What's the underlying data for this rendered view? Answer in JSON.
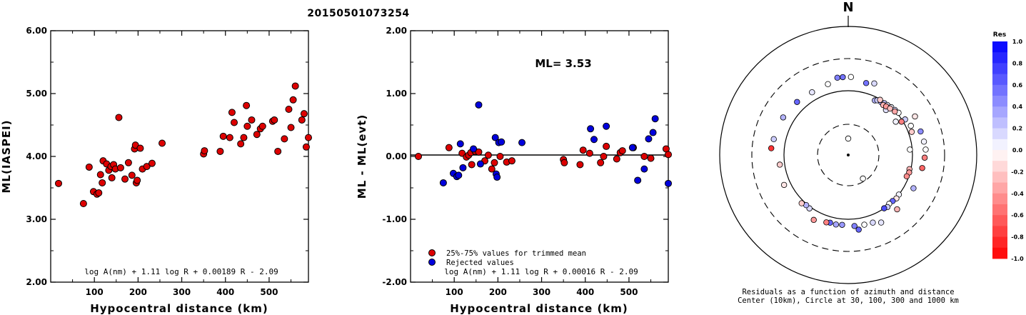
{
  "title": "20150501073254",
  "chart_data": [
    {
      "type": "scatter",
      "name": "ml-vs-distance",
      "xlabel": "Hypocentral distance (km)",
      "ylabel": "ML(IASPEI)",
      "xlim": [
        0,
        590
      ],
      "ylim": [
        2.0,
        6.0
      ],
      "xticks": [
        "100",
        "200",
        "300",
        "400",
        "500"
      ],
      "yticks": [
        "2.00",
        "3.00",
        "4.00",
        "5.00",
        "6.00"
      ],
      "formula": "log A(nm) + 1.11 log R + 0.00189 R - 2.09",
      "points": [
        [
          18,
          3.57
        ],
        [
          75,
          3.25
        ],
        [
          88,
          3.83
        ],
        [
          98,
          3.44
        ],
        [
          106,
          3.4
        ],
        [
          110,
          3.42
        ],
        [
          114,
          3.71
        ],
        [
          118,
          3.58
        ],
        [
          120,
          3.93
        ],
        [
          128,
          3.88
        ],
        [
          133,
          3.78
        ],
        [
          138,
          3.84
        ],
        [
          140,
          3.66
        ],
        [
          144,
          3.87
        ],
        [
          148,
          3.8
        ],
        [
          156,
          4.62
        ],
        [
          160,
          3.82
        ],
        [
          170,
          3.64
        ],
        [
          178,
          3.9
        ],
        [
          186,
          3.7
        ],
        [
          192,
          4.12
        ],
        [
          194,
          4.18
        ],
        [
          196,
          3.58
        ],
        [
          198,
          3.62
        ],
        [
          205,
          4.13
        ],
        [
          210,
          3.8
        ],
        [
          220,
          3.84
        ],
        [
          232,
          3.89
        ],
        [
          255,
          4.21
        ],
        [
          350,
          4.04
        ],
        [
          352,
          4.09
        ],
        [
          388,
          4.08
        ],
        [
          395,
          4.32
        ],
        [
          410,
          4.3
        ],
        [
          415,
          4.7
        ],
        [
          420,
          4.54
        ],
        [
          435,
          4.2
        ],
        [
          442,
          4.3
        ],
        [
          448,
          4.81
        ],
        [
          450,
          4.48
        ],
        [
          460,
          4.58
        ],
        [
          472,
          4.35
        ],
        [
          480,
          4.44
        ],
        [
          485,
          4.48
        ],
        [
          508,
          4.56
        ],
        [
          512,
          4.58
        ],
        [
          520,
          4.08
        ],
        [
          535,
          4.28
        ],
        [
          545,
          4.75
        ],
        [
          550,
          4.46
        ],
        [
          555,
          4.9
        ],
        [
          560,
          5.12
        ],
        [
          575,
          4.58
        ],
        [
          580,
          4.68
        ],
        [
          585,
          4.15
        ],
        [
          590,
          4.3
        ]
      ]
    },
    {
      "type": "scatter",
      "name": "ml-residual-vs-distance",
      "xlabel": "Hypocentral distance (km)",
      "ylabel": "ML - ML(evt)",
      "xlim": [
        0,
        590
      ],
      "ylim": [
        -2.0,
        2.0
      ],
      "xticks": [
        "100",
        "200",
        "300",
        "400",
        "500"
      ],
      "yticks": [
        "-2.00",
        "-1.00",
        "0.00",
        "1.00",
        "2.00"
      ],
      "ml_label": "ML= 3.53",
      "legend": [
        "25%-75% values for trimmed mean",
        "Rejected values"
      ],
      "colors": {
        "kept": "#dd0000",
        "rejected": "#0000dd"
      },
      "formula": "log A(nm) + 1.11 log R + 0.00016 R - 2.09",
      "kept": [
        [
          18,
          0.0
        ],
        [
          88,
          0.14
        ],
        [
          118,
          0.05
        ],
        [
          128,
          -0.01
        ],
        [
          133,
          0.02
        ],
        [
          138,
          0.06
        ],
        [
          140,
          -0.13
        ],
        [
          148,
          0.08
        ],
        [
          156,
          0.07
        ],
        [
          170,
          -0.07
        ],
        [
          178,
          0.02
        ],
        [
          186,
          -0.2
        ],
        [
          192,
          -0.1
        ],
        [
          205,
          0.0
        ],
        [
          220,
          -0.09
        ],
        [
          232,
          -0.07
        ],
        [
          350,
          -0.05
        ],
        [
          352,
          -0.1
        ],
        [
          388,
          -0.13
        ],
        [
          395,
          0.1
        ],
        [
          410,
          0.05
        ],
        [
          435,
          -0.1
        ],
        [
          442,
          0.0
        ],
        [
          448,
          0.16
        ],
        [
          472,
          -0.04
        ],
        [
          480,
          0.06
        ],
        [
          485,
          0.09
        ],
        [
          510,
          0.14
        ],
        [
          535,
          0.0
        ],
        [
          550,
          -0.03
        ],
        [
          585,
          0.12
        ],
        [
          590,
          0.03
        ]
      ],
      "rejected": [
        [
          75,
          -0.42
        ],
        [
          98,
          -0.27
        ],
        [
          106,
          -0.32
        ],
        [
          110,
          -0.3
        ],
        [
          114,
          0.2
        ],
        [
          120,
          -0.18
        ],
        [
          144,
          0.12
        ],
        [
          156,
          0.82
        ],
        [
          160,
          -0.12
        ],
        [
          194,
          0.3
        ],
        [
          196,
          -0.28
        ],
        [
          198,
          -0.33
        ],
        [
          202,
          0.22
        ],
        [
          208,
          0.23
        ],
        [
          255,
          0.22
        ],
        [
          412,
          0.44
        ],
        [
          420,
          0.27
        ],
        [
          448,
          0.48
        ],
        [
          508,
          0.14
        ],
        [
          520,
          -0.38
        ],
        [
          535,
          -0.2
        ],
        [
          545,
          0.28
        ],
        [
          555,
          0.38
        ],
        [
          560,
          0.6
        ],
        [
          590,
          -0.43
        ]
      ]
    },
    {
      "type": "polar-scatter",
      "name": "azimuth-residuals",
      "north_label": "N",
      "caption_line1": "Residuals as a function of azimuth and distance",
      "caption_line2": "Center (10km), Circle at 30, 100, 300 and 1000 km",
      "colorbar_title": "Res",
      "colorbar_ticks": [
        "1.0",
        "0.8",
        "0.6",
        "0.4",
        "0.2",
        "0.0",
        "-0.2",
        "-0.4",
        "-0.6",
        "-0.8",
        "-1.0"
      ],
      "colors": {
        "positive": "#0000ff",
        "negative": "#ff0000",
        "zero": "#ffffff"
      },
      "points": [
        [
          0,
          18,
          0.0
        ],
        [
          148,
          27,
          0.0
        ],
        [
          55,
          80,
          0.05
        ],
        [
          40,
          82,
          0.12
        ],
        [
          26,
          88,
          0.3
        ],
        [
          28,
          92,
          0.2
        ],
        [
          32,
          93,
          0.35
        ],
        [
          35,
          96,
          0.25
        ],
        [
          38,
          97,
          0.1
        ],
        [
          42,
          100,
          0.05
        ],
        [
          46,
          102,
          0.15
        ],
        [
          50,
          105,
          0.0
        ],
        [
          58,
          110,
          0.2
        ],
        [
          65,
          118,
          0.0
        ],
        [
          70,
          112,
          -0.2
        ],
        [
          30,
          98,
          -0.2
        ],
        [
          35,
          89,
          -0.3
        ],
        [
          38,
          91,
          -0.4
        ],
        [
          42,
          94,
          -0.25
        ],
        [
          47,
          98,
          -0.35
        ],
        [
          58,
          95,
          -0.5
        ],
        [
          85,
          92,
          0.0
        ],
        [
          103,
          95,
          -0.3
        ],
        [
          106,
          97,
          -0.4
        ],
        [
          110,
          93,
          -0.45
        ],
        [
          128,
          100,
          0.05
        ],
        [
          132,
          102,
          -0.1
        ],
        [
          136,
          99,
          0.6
        ],
        [
          140,
          98,
          0.0
        ],
        [
          143,
          103,
          0.2
        ],
        [
          146,
          100,
          0.7
        ],
        [
          160,
          130,
          0.15
        ],
        [
          167,
          128,
          0.0
        ],
        [
          175,
          127,
          0.5
        ],
        [
          185,
          122,
          0.4
        ],
        [
          190,
          124,
          0.35
        ],
        [
          195,
          122,
          0.6
        ],
        [
          198,
          125,
          -0.5
        ],
        [
          208,
          137,
          -0.4
        ],
        [
          216,
          106,
          0.15
        ],
        [
          220,
          104,
          0.3
        ],
        [
          224,
          110,
          -0.2
        ],
        [
          245,
          125,
          -0.1
        ],
        [
          262,
          118,
          -0.2
        ],
        [
          275,
          156,
          -0.8
        ],
        [
          282,
          150,
          0.2
        ],
        [
          300,
          145,
          0.3
        ],
        [
          316,
          138,
          0.6
        ],
        [
          330,
          132,
          0.1
        ],
        [
          344,
          138,
          0.0
        ],
        [
          352,
          160,
          0.5
        ],
        [
          356,
          160,
          0.55
        ],
        [
          2,
          160,
          0.0
        ],
        [
          14,
          140,
          0.55
        ],
        [
          20,
          150,
          0.15
        ],
        [
          60,
          155,
          -0.1
        ],
        [
          72,
          150,
          0.45
        ],
        [
          80,
          154,
          0.05
        ],
        [
          86,
          158,
          0.0
        ],
        [
          92,
          152,
          -0.5
        ],
        [
          100,
          145,
          -0.6
        ],
        [
          117,
          136,
          0.3
        ],
        [
          138,
          135,
          -0.3
        ],
        [
          154,
          145,
          0.1
        ],
        [
          172,
          146,
          0.6
        ]
      ]
    }
  ]
}
